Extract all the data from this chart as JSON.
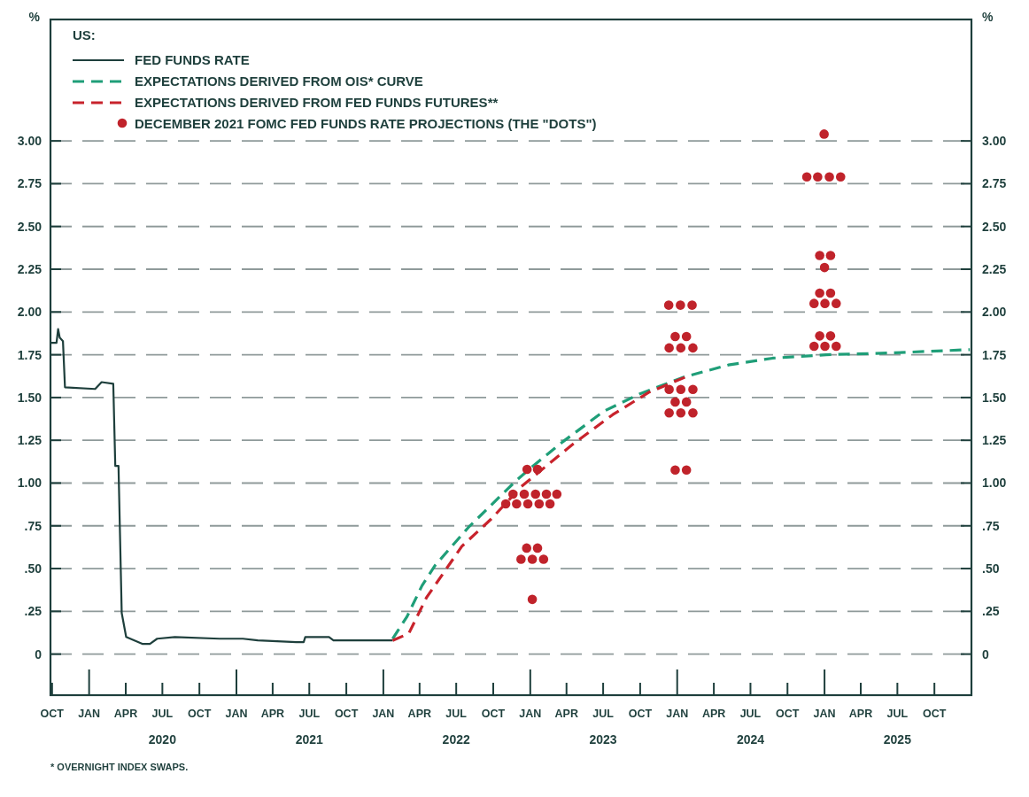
{
  "chart_data": {
    "type": "line",
    "legend_title": "US:",
    "ylabel": "%",
    "y2label": "%",
    "annotations": [
      "* OVERNIGHT INDEX SWAPS."
    ],
    "xlim": [
      "2019-09-27",
      "2026-01-01"
    ],
    "xticks": [
      {
        "value": "2019-10-01",
        "label": "OCT"
      },
      {
        "value": "2020-01-01",
        "label": "JAN"
      },
      {
        "value": "2020-04-01",
        "label": "APR"
      },
      {
        "value": "2020-07-01",
        "label": "JUL\n2020"
      },
      {
        "value": "2020-10-01",
        "label": "OCT"
      },
      {
        "value": "2021-01-01",
        "label": "JAN"
      },
      {
        "value": "2021-04-01",
        "label": "APR"
      },
      {
        "value": "2021-07-01",
        "label": "JUL\n2021"
      },
      {
        "value": "2021-10-01",
        "label": "OCT"
      },
      {
        "value": "2022-01-01",
        "label": "JAN"
      },
      {
        "value": "2022-04-01",
        "label": "APR"
      },
      {
        "value": "2022-07-01",
        "label": "JUL\n2022"
      },
      {
        "value": "2022-10-01",
        "label": "OCT"
      },
      {
        "value": "2023-01-01",
        "label": "JAN"
      },
      {
        "value": "2023-04-01",
        "label": "APR"
      },
      {
        "value": "2023-07-01",
        "label": "JUL\n2023"
      },
      {
        "value": "2023-10-01",
        "label": "OCT"
      },
      {
        "value": "2024-01-01",
        "label": "JAN"
      },
      {
        "value": "2024-04-01",
        "label": "APR"
      },
      {
        "value": "2024-07-01",
        "label": "JUL\n2024"
      },
      {
        "value": "2024-10-01",
        "label": "OCT"
      },
      {
        "value": "2025-01-01",
        "label": "JAN"
      },
      {
        "value": "2025-04-01",
        "label": "APR"
      },
      {
        "value": "2025-07-01",
        "label": "JUL\n2025"
      },
      {
        "value": "2025-10-01",
        "label": "OCT"
      }
    ],
    "ylim": [
      -0.24,
      3.71
    ],
    "yticks": [
      0,
      {
        "value": 0.25,
        "label": ".25"
      },
      {
        "value": 0.5,
        "label": ".50"
      },
      {
        "value": 0.75,
        "label": ".75"
      },
      {
        "value": 1,
        "label": "1.00"
      },
      {
        "value": 1.25,
        "label": "1.25"
      },
      {
        "value": 1.5,
        "label": "1.50"
      },
      {
        "value": 1.75,
        "label": "1.75"
      },
      {
        "value": 2,
        "label": "2.00"
      },
      {
        "value": 2.25,
        "label": "2.25"
      },
      {
        "value": 2.5,
        "label": "2.50"
      },
      {
        "value": 2.75,
        "label": "2.75"
      },
      {
        "value": 3,
        "label": "3.00"
      }
    ],
    "y2lim": [
      -0.24,
      3.71
    ],
    "y2ticks": [
      0,
      {
        "value": 0.25,
        "label": ".25"
      },
      {
        "value": 0.5,
        "label": ".50"
      },
      {
        "value": 0.75,
        "label": ".75"
      },
      {
        "value": 1,
        "label": "1.00"
      },
      {
        "value": 1.25,
        "label": "1.25"
      },
      {
        "value": 1.5,
        "label": "1.50"
      },
      {
        "value": 1.75,
        "label": "1.75"
      },
      {
        "value": 2,
        "label": "2.00"
      },
      {
        "value": 2.25,
        "label": "2.25"
      },
      {
        "value": 2.5,
        "label": "2.50"
      },
      {
        "value": 2.75,
        "label": "2.75"
      },
      {
        "value": 3,
        "label": "3.00"
      }
    ],
    "grid": "y",
    "legend": "top left",
    "series": [
      {
        "name": "FED FUNDS RATE",
        "line_style": "solid",
        "color": "#1e3f3c",
        "x": [
          "2019-09-27",
          "2019-10-12",
          "2019-10-16",
          "2019-10-20",
          "2019-10-28",
          "2019-11-02",
          "2020-01-16",
          "2020-02-01",
          "2020-03-01",
          "2020-03-06",
          "2020-03-14",
          "2020-03-22",
          "2020-04-02",
          "2020-05-12",
          "2020-05-31",
          "2020-06-18",
          "2020-08-01",
          "2020-11-20",
          "2021-01-17",
          "2021-02-23",
          "2021-05-30",
          "2021-06-17",
          "2021-06-21",
          "2021-08-19",
          "2021-08-30",
          "2022-01-24"
        ],
        "values": [
          1.82,
          1.82,
          1.9,
          1.85,
          1.83,
          1.56,
          1.55,
          1.59,
          1.58,
          1.1,
          1.1,
          0.24,
          0.1,
          0.06,
          0.06,
          0.09,
          0.1,
          0.09,
          0.09,
          0.08,
          0.07,
          0.07,
          0.1,
          0.1,
          0.08,
          0.08
        ]
      },
      {
        "name": "EXPECTATIONS DERIVED FROM OIS* CURVE",
        "line_style": "dashed",
        "color": "#1f9e78",
        "x": [
          "2022-01-24",
          "2022-03-01",
          "2022-04-07",
          "2022-05-10",
          "2022-07-31",
          "2022-11-25",
          "2023-01-08",
          "2023-03-22",
          "2023-07-03",
          "2023-09-29",
          "2024-01-18",
          "2024-05-07",
          "2024-08-25",
          "2025-01-05",
          "2025-06-08",
          "2025-12-28"
        ],
        "values": [
          0.09,
          0.22,
          0.4,
          0.52,
          0.74,
          1.01,
          1.1,
          1.24,
          1.42,
          1.52,
          1.62,
          1.69,
          1.73,
          1.75,
          1.76,
          1.78
        ]
      },
      {
        "name": "EXPECTATIONS DERIVED FROM FED FUNDS FUTURES**",
        "line_style": "dashed",
        "color": "#c8232c",
        "x": [
          "2022-01-24",
          "2022-03-05",
          "2022-04-18",
          "2022-06-01",
          "2022-07-15",
          "2022-09-26",
          "2022-12-10",
          "2023-04-13",
          "2023-07-25",
          "2023-10-22",
          "2024-01-22"
        ],
        "values": [
          0.08,
          0.12,
          0.33,
          0.48,
          0.63,
          0.79,
          0.98,
          1.22,
          1.4,
          1.53,
          1.62
        ]
      },
      {
        "name": "DECEMBER 2021 FOMC FED FUNDS RATE PROJECTIONS (THE \"DOTS\")",
        "type": "scatter",
        "marker": "circle",
        "color": "#c0232b",
        "x": [
          "2023-01-06",
          "2022-12-09",
          "2023-01-06",
          "2023-02-03",
          "2022-12-23",
          "2023-01-19",
          "2022-11-01",
          "2022-11-28",
          "2022-12-26",
          "2023-01-23",
          "2023-02-19",
          "2022-11-19",
          "2022-12-17",
          "2023-01-14",
          "2023-02-10",
          "2023-03-08",
          "2022-12-24",
          "2023-01-19",
          "2023-12-11",
          "2024-01-09",
          "2024-02-07",
          "2023-12-27",
          "2024-01-24",
          "2023-12-12",
          "2024-01-10",
          "2024-02-09",
          "2023-12-12",
          "2024-01-10",
          "2024-02-09",
          "2023-12-27",
          "2024-01-24",
          "2023-12-12",
          "2024-01-10",
          "2024-02-09",
          "2023-12-27",
          "2024-01-24",
          "2024-12-31",
          "2024-11-18",
          "2024-12-15",
          "2025-01-13",
          "2025-02-10",
          "2024-12-20",
          "2025-01-16",
          "2025-01-01",
          "2024-12-20",
          "2025-01-16",
          "2024-12-06",
          "2025-01-02",
          "2025-01-30",
          "2024-12-20",
          "2025-01-16",
          "2024-12-06",
          "2025-01-02",
          "2025-01-30"
        ],
        "values": [
          0.32,
          0.555,
          0.555,
          0.555,
          0.62,
          0.62,
          0.878,
          0.878,
          0.878,
          0.878,
          0.878,
          0.935,
          0.935,
          0.935,
          0.935,
          0.935,
          1.08,
          1.08,
          2.04,
          2.04,
          2.04,
          1.857,
          1.857,
          1.79,
          1.79,
          1.79,
          1.547,
          1.547,
          1.547,
          1.474,
          1.474,
          1.41,
          1.41,
          1.41,
          1.076,
          1.076,
          3.04,
          2.79,
          2.79,
          2.79,
          2.79,
          2.33,
          2.33,
          2.26,
          2.11,
          2.11,
          2.05,
          2.05,
          2.05,
          1.86,
          1.86,
          1.8,
          1.8,
          1.8
        ]
      }
    ]
  }
}
